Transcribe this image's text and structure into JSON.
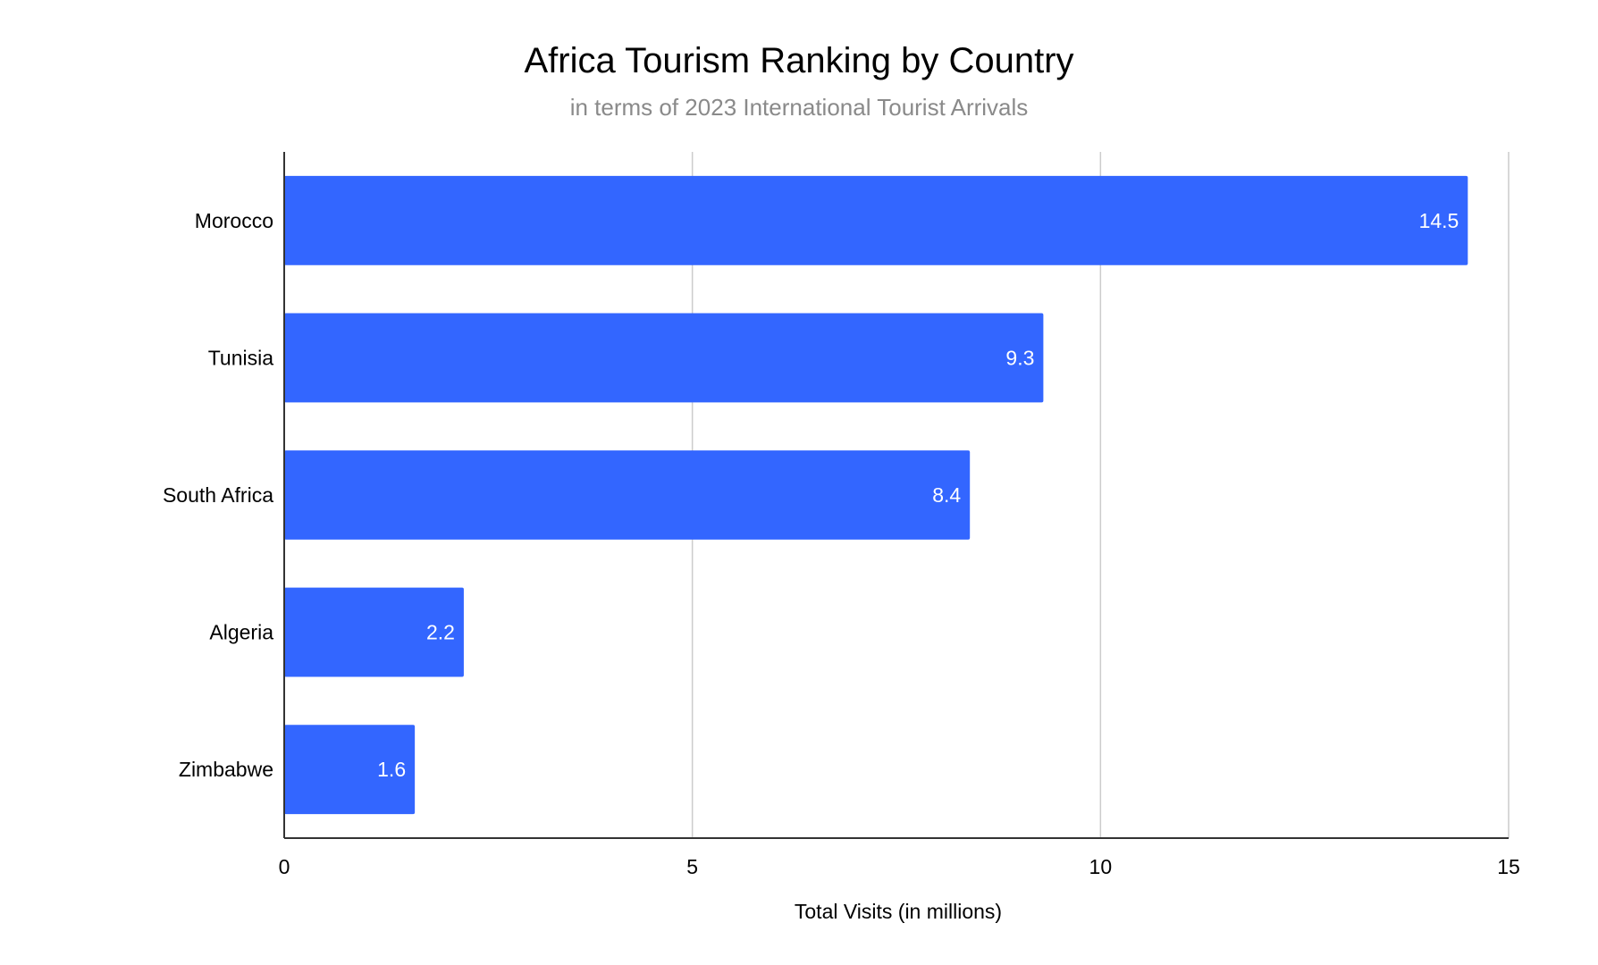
{
  "chart_data": {
    "type": "bar",
    "orientation": "horizontal",
    "title": "Africa Tourism Ranking by Country",
    "subtitle": "in terms of 2023 International Tourist Arrivals",
    "xlabel": "Total Visits (in millions)",
    "ylabel": "",
    "categories": [
      "Morocco",
      "Tunisia",
      "South Africa",
      "Algeria",
      "Zimbabwe"
    ],
    "values": [
      14.5,
      9.3,
      8.4,
      2.2,
      1.6
    ],
    "data_labels": [
      "14.5",
      "9.3",
      "8.4",
      "2.2",
      "1.6"
    ],
    "xlim": [
      0,
      15
    ],
    "x_ticks": [
      0,
      5,
      10,
      15
    ],
    "x_tick_labels": [
      "0",
      "5",
      "10",
      "15"
    ],
    "grid": true,
    "legend": "none",
    "colors": {
      "bar": "#3366ff",
      "grid": "#cccccc",
      "axis": "#333333",
      "data_label": "#ffffff",
      "subtitle": "#8a8a8a"
    }
  }
}
